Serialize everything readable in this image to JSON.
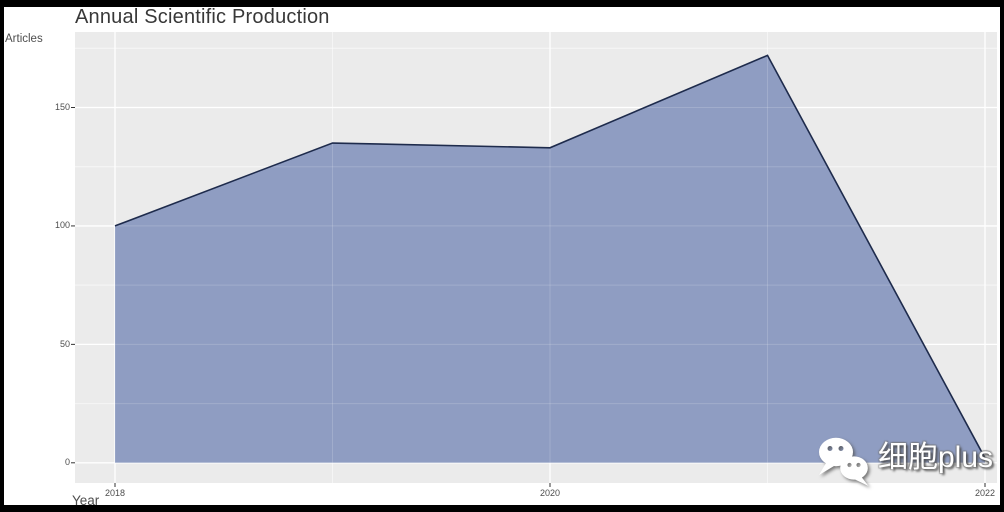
{
  "page": {
    "frame_color": "#000000",
    "canvas_bg": "#FFFFFF"
  },
  "chart_data": {
    "type": "area",
    "title": "Annual Scientific Production",
    "xlabel": "Year",
    "ylabel": "Articles",
    "x": [
      2018,
      2019,
      2020,
      2021,
      2022
    ],
    "values": [
      100,
      135,
      133,
      172,
      2
    ],
    "x_ticks": [
      2018,
      2020,
      2022
    ],
    "x_minor_ticks": [
      2019,
      2021
    ],
    "y_ticks": [
      0,
      50,
      100,
      150
    ],
    "y_minor_ticks": [
      25,
      75,
      125,
      175
    ],
    "ylim": [
      0,
      182
    ],
    "grid": true,
    "legend": false,
    "panel_bg": "#EBEBEB",
    "grid_color": "#FFFFFF",
    "area_fill": "#8A99BF",
    "line_color": "#1E2B4C",
    "tick_color": "#333333",
    "tick_label_color": "#4D4D4D",
    "title_color": "#383838"
  },
  "watermark": {
    "icon": "wechat-icon",
    "text": "细胞plus",
    "text_color": "#FFFFFF"
  }
}
